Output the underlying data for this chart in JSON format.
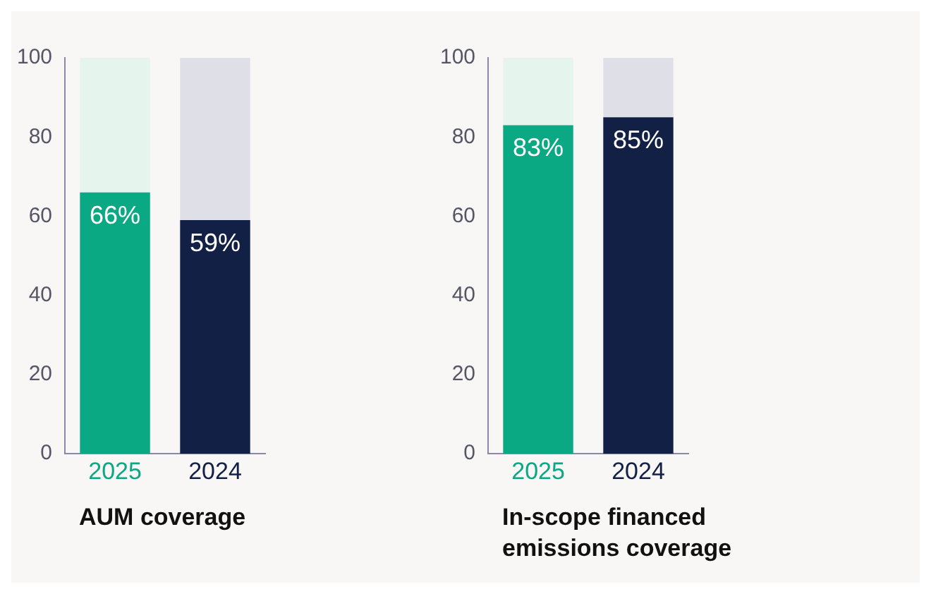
{
  "chart_data": [
    {
      "type": "bar",
      "stacked": true,
      "xlabel": "AUM coverage",
      "categories": [
        "2025",
        "2024"
      ],
      "ylim": [
        0,
        100
      ],
      "yticks": [
        0,
        20,
        40,
        60,
        80,
        100
      ],
      "grid": false,
      "legend": false,
      "series": [
        {
          "values": [
            66,
            59
          ],
          "colors": [
            "#0aa883",
            "#132046"
          ],
          "value_labels": [
            "66%",
            "59%"
          ]
        },
        {
          "values": [
            34,
            41
          ],
          "colors": [
            "#e6f4ee",
            "#dfdfe8"
          ]
        }
      ]
    },
    {
      "type": "bar",
      "stacked": true,
      "xlabel": "In-scope financed emissions coverage",
      "categories": [
        "2025",
        "2024"
      ],
      "ylim": [
        0,
        100
      ],
      "yticks": [
        0,
        20,
        40,
        60,
        80,
        100
      ],
      "grid": false,
      "legend": false,
      "series": [
        {
          "values": [
            83,
            85
          ],
          "colors": [
            "#0aa883",
            "#132046"
          ],
          "value_labels": [
            "83%",
            "85%"
          ]
        },
        {
          "values": [
            17,
            15
          ],
          "colors": [
            "#e6f4ee",
            "#dfdfe8"
          ]
        }
      ]
    }
  ]
}
